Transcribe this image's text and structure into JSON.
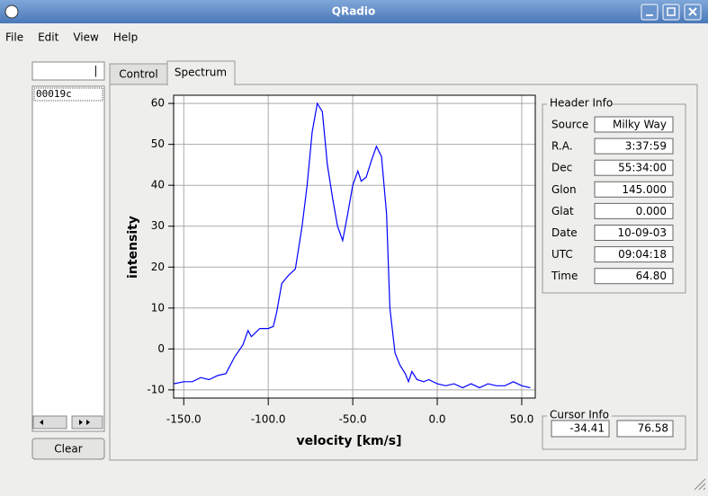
{
  "window": {
    "title": "QRadio"
  },
  "menu": [
    "File",
    "Edit",
    "View",
    "Help"
  ],
  "left_panel": {
    "counter": "|",
    "list": [
      "00019c"
    ],
    "clear_button": "Clear"
  },
  "tabs": [
    "Control",
    "Spectrum"
  ],
  "header_info": {
    "title": "Header Info",
    "rows": [
      {
        "label": "Source",
        "value": "Milky Way"
      },
      {
        "label": "R.A.",
        "value": "3:37:59"
      },
      {
        "label": "Dec",
        "value": "55:34:00"
      },
      {
        "label": "Glon",
        "value": "145.000"
      },
      {
        "label": "Glat",
        "value": "0.000"
      },
      {
        "label": "Date",
        "value": "10-09-03"
      },
      {
        "label": "UTC",
        "value": "09:04:18"
      },
      {
        "label": "Time",
        "value": "64.80"
      }
    ]
  },
  "cursor_info": {
    "title": "Cursor Info",
    "values": [
      "-34.41",
      "76.58"
    ]
  },
  "chart_data": {
    "type": "line",
    "xlabel": "velocity [km/s]",
    "ylabel": "intensity",
    "x": [
      -156,
      -150,
      -145,
      -140,
      -135,
      -130,
      -125,
      -120,
      -115,
      -112,
      -110,
      -105,
      -100,
      -97,
      -95,
      -92,
      -88,
      -84,
      -80,
      -77,
      -74,
      -71,
      -68,
      -65,
      -62,
      -59,
      -56,
      -53,
      -50,
      -47,
      -45,
      -42,
      -39,
      -36,
      -33,
      -30,
      -28,
      -25,
      -22,
      -19,
      -17,
      -15,
      -12,
      -8,
      -5,
      0,
      5,
      10,
      15,
      20,
      25,
      30,
      35,
      40,
      45,
      50,
      55
    ],
    "series": [
      {
        "name": "spectrum",
        "color": "#0000ff",
        "values": [
          -8.5,
          -8,
          -8,
          -7,
          -7.5,
          -6.5,
          -6,
          -2,
          1,
          4.5,
          3,
          5,
          5,
          5.5,
          9,
          16,
          18,
          19.5,
          30,
          40,
          53,
          60,
          58,
          45,
          37,
          30,
          26.5,
          33,
          40,
          43.5,
          41,
          42,
          46,
          49.5,
          47,
          33,
          10,
          -1,
          -4,
          -6,
          -8,
          -5.5,
          -7.5,
          -8,
          -7.5,
          -8.5,
          -9,
          -8.5,
          -9.5,
          -8.5,
          -9.5,
          -8.5,
          -9,
          -9,
          -8,
          -9,
          -9.5
        ]
      }
    ],
    "xlim": [
      -156,
      58
    ],
    "ylim": [
      -12,
      62
    ],
    "xticks": [
      {
        "value": -150,
        "label": "-150.0"
      },
      {
        "value": -100,
        "label": "-100.0"
      },
      {
        "value": -50,
        "label": "-50.0"
      },
      {
        "value": 0,
        "label": "0.0"
      },
      {
        "value": 50,
        "label": "50.0"
      }
    ],
    "yticks": [
      -10,
      0,
      10,
      20,
      30,
      40,
      50,
      60
    ],
    "grid": true
  }
}
